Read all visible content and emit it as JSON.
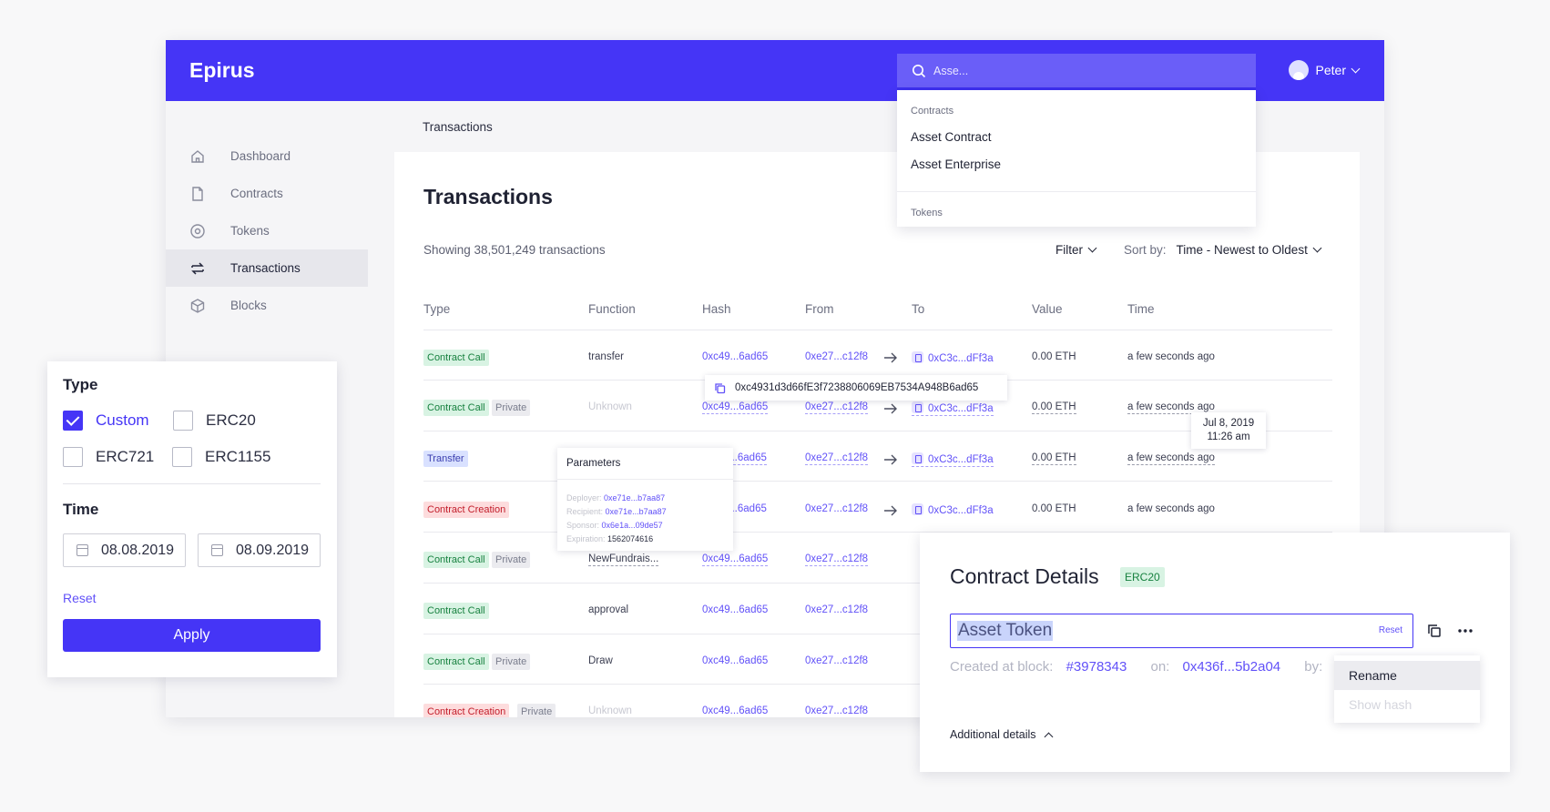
{
  "app": {
    "logo": "Epirus",
    "user_name": "Peter"
  },
  "search": {
    "query": "Asse...",
    "groups": [
      {
        "label": "Contracts",
        "items": [
          "Asset Contract",
          "Asset Enterprise"
        ]
      },
      {
        "label": "Tokens",
        "items": []
      }
    ]
  },
  "sidebar": {
    "items": [
      {
        "label": "Dashboard",
        "icon": "home-icon"
      },
      {
        "label": "Contracts",
        "icon": "file-icon"
      },
      {
        "label": "Tokens",
        "icon": "token-icon"
      },
      {
        "label": "Transactions",
        "icon": "swap-icon",
        "active": true
      },
      {
        "label": "Blocks",
        "icon": "cube-icon"
      }
    ]
  },
  "breadcrumb": "Transactions",
  "page": {
    "title": "Transactions",
    "showing": "Showing 38,501,249 transactions",
    "filter_label": "Filter",
    "sort_label": "Sort by:",
    "sort_value": "Time - Newest to Oldest"
  },
  "table": {
    "columns": [
      "Type",
      "Function",
      "Hash",
      "From",
      "To",
      "Value",
      "Time"
    ],
    "rows": [
      {
        "type": "Contract Call",
        "kind": "green",
        "private": "",
        "function": "transfer",
        "hash": "0xc49...6ad65",
        "from": "0xe27...c12f8",
        "to": "0xC3c...dFf3a",
        "value": "0.00 ETH",
        "time": "a few seconds ago"
      },
      {
        "type": "Contract Call",
        "kind": "green",
        "private": "Private",
        "function": "Unknown",
        "hash": "0xc49...6ad65",
        "from": "0xe27...c12f8",
        "to": "0xC3c...dFf3a",
        "value": "0.00 ETH",
        "time": "a few seconds ago"
      },
      {
        "type": "Transfer",
        "kind": "blue",
        "private": "",
        "function": "",
        "hash": "xc49...6ad65",
        "from": "0xe27...c12f8",
        "to": "0xC3c...dFf3a",
        "value": "0.00 ETH",
        "time": "a few seconds ago"
      },
      {
        "type": "Contract Creation",
        "kind": "red",
        "private": "",
        "function": "",
        "hash": "xc49...6ad65",
        "from": "0xe27...c12f8",
        "to": "0xC3c...dFf3a",
        "value": "0.00 ETH",
        "time": "a few seconds ago"
      },
      {
        "type": "Contract Call",
        "kind": "green",
        "private": "Private",
        "function": "NewFundrais...",
        "hash": "0xc49...6ad65",
        "from": "0xe27...c12f8",
        "to": "",
        "value": "",
        "time": ""
      },
      {
        "type": "Contract Call",
        "kind": "green",
        "private": "",
        "function": "approval",
        "hash": "0xc49...6ad65",
        "from": "0xe27...c12f8",
        "to": "",
        "value": "",
        "time": ""
      },
      {
        "type": "Contract Call",
        "kind": "green",
        "private": "Private",
        "function": "Draw",
        "hash": "0xc49...6ad65",
        "from": "0xe27...c12f8",
        "to": "",
        "value": "",
        "time": ""
      },
      {
        "type": "Contract Creation",
        "kind": "red",
        "private": "Private",
        "function": "Unknown",
        "hash": "0xc49...6ad65",
        "from": "0xe27...c12f8",
        "to": "",
        "value": "",
        "time": ""
      }
    ]
  },
  "hash_tooltip": "0xc4931d3d66fE3f7238806069EB7534A948B6ad65",
  "time_tooltip": {
    "date": "Jul 8, 2019",
    "time": "11:26 am"
  },
  "params_tooltip": {
    "title": "Parameters",
    "rows": [
      {
        "key": "Deployer:",
        "value": "0xe71e...b7aa87"
      },
      {
        "key": "Recipient:",
        "value": "0xe71e...b7aa87"
      },
      {
        "key": "Sponsor:",
        "value": "0x6e1a...09de57"
      },
      {
        "key": "Expiration:",
        "value": "1562074616"
      }
    ]
  },
  "type_filter": {
    "type_heading": "Type",
    "options": [
      {
        "label": "Custom",
        "checked": true
      },
      {
        "label": "ERC20",
        "checked": false
      },
      {
        "label": "ERC721",
        "checked": false
      },
      {
        "label": "ERC1155",
        "checked": false
      }
    ],
    "time_heading": "Time",
    "date_from": "08.08.2019",
    "date_to": "08.09.2019",
    "reset_label": "Reset",
    "apply_label": "Apply"
  },
  "contract_details": {
    "title": "Contract Details",
    "badge": "ERC20",
    "name_value": "Asset Token",
    "reset_label": "Reset",
    "created_label": "Created at block:",
    "block": "#3978343",
    "on_label": "on:",
    "on_value": "0x436f...5b2a04",
    "by_label": "by:",
    "by_value": "(",
    "menu": [
      "Rename",
      "Show hash"
    ],
    "additional": "Additional details"
  },
  "colors": {
    "brand": "#4535f6",
    "link": "#6151f8",
    "green_badge": "#d8f3e3",
    "red_badge": "#fddcdd",
    "blue_badge": "#d9e1ff"
  }
}
